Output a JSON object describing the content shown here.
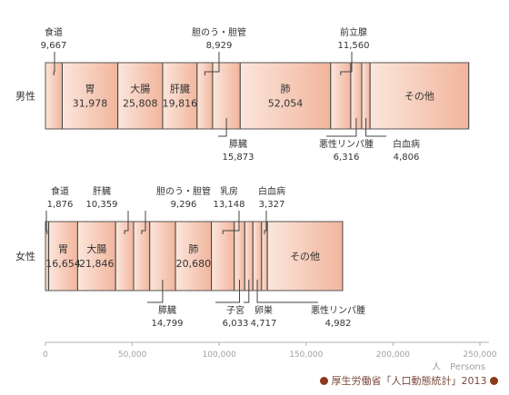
{
  "chart_data": {
    "type": "bar",
    "orientation": "horizontal-stacked",
    "rows": [
      {
        "label": "男性",
        "segments": [
          {
            "name": "食道",
            "value": 9667
          },
          {
            "name": "胃",
            "value": 31978
          },
          {
            "name": "大腸",
            "value": 25808
          },
          {
            "name": "肝臓",
            "value": 19816
          },
          {
            "name": "胆のう・胆管",
            "value": 8929
          },
          {
            "name": "膵臓",
            "value": 15873
          },
          {
            "name": "肺",
            "value": 52054
          },
          {
            "name": "前立腺",
            "value": 11560
          },
          {
            "name": "悪性リンパ腫",
            "value": 6316
          },
          {
            "name": "白血病",
            "value": 4806
          },
          {
            "name": "その他",
            "value": 56739
          }
        ]
      },
      {
        "label": "女性",
        "segments": [
          {
            "name": "食道",
            "value": 1876
          },
          {
            "name": "胃",
            "value": 16654
          },
          {
            "name": "大腸",
            "value": 21846
          },
          {
            "name": "肝臓",
            "value": 10359
          },
          {
            "name": "胆のう・胆管",
            "value": 9296
          },
          {
            "name": "膵臓",
            "value": 14799
          },
          {
            "name": "肺",
            "value": 20680
          },
          {
            "name": "乳房",
            "value": 13148
          },
          {
            "name": "子宮",
            "value": 6033
          },
          {
            "name": "卵巣",
            "value": 4717
          },
          {
            "name": "悪性リンパ腫",
            "value": 4982
          },
          {
            "name": "白血病",
            "value": 3327
          },
          {
            "name": "その他",
            "value": 43283
          }
        ]
      }
    ],
    "xlim": [
      0,
      250000
    ],
    "xticks": [
      0,
      50000,
      100000,
      150000,
      200000,
      250000
    ],
    "xtick_labels": [
      "0",
      "50,000",
      "100,000",
      "150,000",
      "200,000",
      "250,000"
    ],
    "xlabel": "人　Persons",
    "source": "厚生労働省「人口動態統計」2013",
    "colors": {
      "fill_light": "#fbe6dc",
      "fill_dark": "#f2b59c",
      "bar_border": "#555555",
      "divider": "#444444",
      "text": "#333333",
      "axis": "#b0b0b0",
      "tick_text": "#a0a0a0",
      "source_dot": "#8b3a1a"
    }
  }
}
